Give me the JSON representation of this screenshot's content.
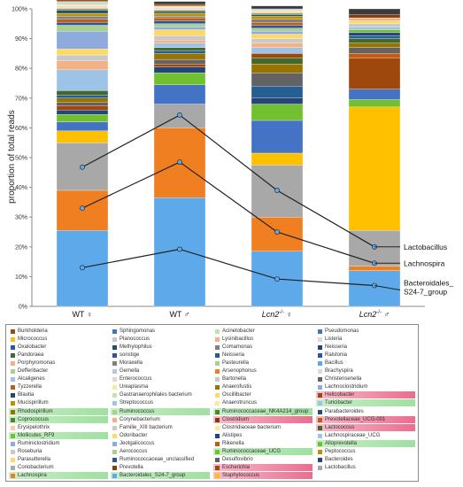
{
  "chart_data": {
    "type": "stacked-bar-with-lines",
    "ylabel": "proportion of total reads",
    "ylim": [
      0,
      100
    ],
    "yticks": [
      "0%",
      "10%",
      "20%",
      "30%",
      "40%",
      "50%",
      "60%",
      "70%",
      "80%",
      "90%",
      "100%"
    ],
    "categories": [
      {
        "prefix": "WT",
        "sup": "",
        "sym": "♀"
      },
      {
        "prefix": "WT",
        "sup": "",
        "sym": "♂"
      },
      {
        "prefix": "Lcn2",
        "sup": "-/-",
        "sym": "♀"
      },
      {
        "prefix": "Lcn2",
        "sup": "-/-",
        "sym": "♂"
      }
    ],
    "stacks": [
      [
        {
          "v": 25.5,
          "c": "#5da9e9"
        },
        {
          "v": 13.5,
          "c": "#f07f22"
        },
        {
          "v": 16,
          "c": "#a8a8a8"
        },
        {
          "v": 4,
          "c": "#ffc000"
        },
        {
          "v": 3,
          "c": "#4472c4"
        },
        {
          "v": 2.5,
          "c": "#70c030"
        },
        {
          "v": 1.5,
          "c": "#264478"
        },
        {
          "v": 1.5,
          "c": "#9e480e"
        },
        {
          "v": 1,
          "c": "#636363"
        },
        {
          "v": 1.5,
          "c": "#997300"
        },
        {
          "v": 1,
          "c": "#255e91"
        },
        {
          "v": 1.5,
          "c": "#43682b"
        },
        {
          "v": 7,
          "c": "#9dc3e6"
        },
        {
          "v": 3,
          "c": "#f4b183"
        },
        {
          "v": 2,
          "c": "#c9c9c9"
        },
        {
          "v": 2,
          "c": "#ffd966"
        },
        {
          "v": 6,
          "c": "#8faadc"
        },
        {
          "v": 2,
          "c": "#a9d18e"
        },
        {
          "v": 1,
          "c": "#2f5597"
        },
        {
          "v": 1,
          "c": "#c55a11"
        },
        {
          "v": 1,
          "c": "#7f7f7f"
        },
        {
          "v": 1,
          "c": "#bf9000"
        },
        {
          "v": 1,
          "c": "#1f4e79"
        },
        {
          "v": 0.5,
          "c": "#548235"
        },
        {
          "v": 0.5,
          "c": "#f8cbad"
        },
        {
          "v": 0.5,
          "c": "#dbdbdb"
        },
        {
          "v": 0.5,
          "c": "#ffe699"
        },
        {
          "v": 0.5,
          "c": "#b4c7e7"
        },
        {
          "v": 0.5,
          "c": "#c5e0b4"
        },
        {
          "v": 0.5,
          "c": "#843c0c"
        },
        {
          "v": 1,
          "c": "#3b3b3b"
        }
      ],
      [
        {
          "v": 36.5,
          "c": "#5da9e9"
        },
        {
          "v": 23.5,
          "c": "#f07f22"
        },
        {
          "v": 8,
          "c": "#a8a8a8"
        },
        {
          "v": 6.5,
          "c": "#4472c4"
        },
        {
          "v": 4,
          "c": "#70c030"
        },
        {
          "v": 2,
          "c": "#264478"
        },
        {
          "v": 1,
          "c": "#9e480e"
        },
        {
          "v": 1.5,
          "c": "#636363"
        },
        {
          "v": 2,
          "c": "#997300"
        },
        {
          "v": 1,
          "c": "#255e91"
        },
        {
          "v": 1,
          "c": "#43682b"
        },
        {
          "v": 1.5,
          "c": "#9dc3e6"
        },
        {
          "v": 1,
          "c": "#f4b183"
        },
        {
          "v": 1.5,
          "c": "#c9c9c9"
        },
        {
          "v": 2,
          "c": "#ffd966"
        },
        {
          "v": 1,
          "c": "#8faadc"
        },
        {
          "v": 1,
          "c": "#a9d18e"
        },
        {
          "v": 1,
          "c": "#2f5597"
        },
        {
          "v": 1,
          "c": "#c55a11"
        },
        {
          "v": 0.5,
          "c": "#7f7f7f"
        },
        {
          "v": 1,
          "c": "#bf9000"
        },
        {
          "v": 0.5,
          "c": "#1f4e79"
        },
        {
          "v": 0.5,
          "c": "#548235"
        },
        {
          "v": 0.5,
          "c": "#f8cbad"
        },
        {
          "v": 0.5,
          "c": "#dbdbdb"
        },
        {
          "v": 0.5,
          "c": "#ffe699"
        },
        {
          "v": 0.5,
          "c": "#843c0c"
        },
        {
          "v": 1,
          "c": "#3b3b3b"
        }
      ],
      [
        {
          "v": 18.5,
          "c": "#5da9e9"
        },
        {
          "v": 11.5,
          "c": "#f07f22"
        },
        {
          "v": 17.5,
          "c": "#a8a8a8"
        },
        {
          "v": 4,
          "c": "#ffc000"
        },
        {
          "v": 11,
          "c": "#4472c4"
        },
        {
          "v": 5.5,
          "c": "#70c030"
        },
        {
          "v": 2,
          "c": "#264478"
        },
        {
          "v": 4,
          "c": "#255e91"
        },
        {
          "v": 4.5,
          "c": "#636363"
        },
        {
          "v": 3,
          "c": "#997300"
        },
        {
          "v": 2,
          "c": "#43682b"
        },
        {
          "v": 1.5,
          "c": "#9e480e"
        },
        {
          "v": 2,
          "c": "#9dc3e6"
        },
        {
          "v": 1.5,
          "c": "#f4b183"
        },
        {
          "v": 1.5,
          "c": "#c9c9c9"
        },
        {
          "v": 1.5,
          "c": "#ffd966"
        },
        {
          "v": 1,
          "c": "#8faadc"
        },
        {
          "v": 1,
          "c": "#a9d18e"
        },
        {
          "v": 1,
          "c": "#2f5597"
        },
        {
          "v": 1,
          "c": "#c55a11"
        },
        {
          "v": 1,
          "c": "#7f7f7f"
        },
        {
          "v": 1,
          "c": "#bf9000"
        },
        {
          "v": 0.5,
          "c": "#1f4e79"
        },
        {
          "v": 0.5,
          "c": "#548235"
        },
        {
          "v": 0.5,
          "c": "#f8cbad"
        },
        {
          "v": 0.5,
          "c": "#ffe699"
        },
        {
          "v": 0.5,
          "c": "#b4c7e7"
        },
        {
          "v": 1,
          "c": "#3b3b3b"
        }
      ],
      [
        {
          "v": 12,
          "c": "#5da9e9"
        },
        {
          "v": 1.5,
          "c": "#f07f22"
        },
        {
          "v": 12,
          "c": "#a8a8a8"
        },
        {
          "v": 41.5,
          "c": "#ffc000"
        },
        {
          "v": 2.5,
          "c": "#70c030"
        },
        {
          "v": 3.5,
          "c": "#4472c4"
        },
        {
          "v": 10.5,
          "c": "#9e480e"
        },
        {
          "v": 1.5,
          "c": "#c55a11"
        },
        {
          "v": 2,
          "c": "#636363"
        },
        {
          "v": 1.5,
          "c": "#997300"
        },
        {
          "v": 1.5,
          "c": "#43682b"
        },
        {
          "v": 1,
          "c": "#255e91"
        },
        {
          "v": 1,
          "c": "#264478"
        },
        {
          "v": 1,
          "c": "#70c030"
        },
        {
          "v": 1,
          "c": "#9dc3e6"
        },
        {
          "v": 1,
          "c": "#c9c9c9"
        },
        {
          "v": 1,
          "c": "#ffd966"
        },
        {
          "v": 1,
          "c": "#f4b183"
        },
        {
          "v": 1,
          "c": "#843c0c"
        },
        {
          "v": 2,
          "c": "#3b3b3b"
        }
      ]
    ],
    "lines": [
      {
        "label": "Lactobacillus",
        "values": [
          46.8,
          64.3,
          39,
          20
        ]
      },
      {
        "label": "Lachnospira",
        "values": [
          33,
          48.5,
          25,
          14.5
        ]
      },
      {
        "label": "Bacteroidales_\nS24-7_group",
        "values": [
          13,
          19.2,
          9.2,
          7
        ]
      }
    ],
    "line_color": "#222222",
    "point_color": "#5da9e9",
    "legend": [
      [
        {
          "t": "Burkholderia",
          "c": "#9e480e"
        },
        {
          "t": "Micrococcus",
          "c": "#ffc000"
        },
        {
          "t": "Oxalobacter",
          "c": "#255e91"
        },
        {
          "t": "Pandoraea",
          "c": "#43682b"
        },
        {
          "t": "Porphyromonas",
          "c": "#f4b183"
        },
        {
          "t": "Defferibacter",
          "c": "#a9d18e"
        },
        {
          "t": "Alcaligenes",
          "c": "#9dc3e6"
        },
        {
          "t": "Tyzzerella",
          "c": "#c55a11"
        },
        {
          "t": "Blautia",
          "c": "#264478"
        },
        {
          "t": "Mucispirillum",
          "c": "#bf9000"
        },
        {
          "t": "Rhodospirillum",
          "c": "#997300",
          "hl": "green"
        },
        {
          "t": "Coprococcus",
          "c": "#548235",
          "hl": "green"
        },
        {
          "t": "Erysipelothrix",
          "c": "#f8cbad"
        },
        {
          "t": "Mollicutes_RF9",
          "c": "#70c030",
          "hl": "green"
        },
        {
          "t": "Ruminiclostridium",
          "c": "#8faadc"
        },
        {
          "t": "Roseburia",
          "c": "#c9c9c9"
        },
        {
          "t": "Parasutterella",
          "c": "#ffd966"
        },
        {
          "t": "Coriobacterium",
          "c": "#a8a8a8"
        },
        {
          "t": "Lachnospira",
          "c": "#f07f22",
          "hl": "green"
        }
      ],
      [
        {
          "t": "Sphingomonas",
          "c": "#4472c4"
        },
        {
          "t": "Planococcus",
          "c": "#c9c9c9"
        },
        {
          "t": "Methylophilus",
          "c": "#1f4e79"
        },
        {
          "t": "sonstige",
          "c": "#2f5597"
        },
        {
          "t": "Moraxella",
          "c": "#7f7f7f"
        },
        {
          "t": "Gemella",
          "c": "#b4c7e7"
        },
        {
          "t": "Enterococcus",
          "c": "#dbdbdb"
        },
        {
          "t": "Ureaplasma",
          "c": "#ffe699"
        },
        {
          "t": "Gastranaerophilales bacterium",
          "c": "#c5e0b4"
        },
        {
          "t": "Streptococcus",
          "c": "#9dc3e6"
        },
        {
          "t": "Ruminococcus",
          "c": "#a9d18e",
          "hl": "green"
        },
        {
          "t": "Corynebacterium",
          "c": "#f4b183"
        },
        {
          "t": "Familie_XIII bacterium",
          "c": "#c9c9c9"
        },
        {
          "t": "Odoribacter",
          "c": "#ffd966"
        },
        {
          "t": "Jeotgalicoccus",
          "c": "#8faadc"
        },
        {
          "t": "Aerococcus",
          "c": "#a9d18e"
        },
        {
          "t": "Ruminococcaceae_unclassified",
          "c": "#2f5597"
        },
        {
          "t": "Prevotella",
          "c": "#843c0c"
        },
        {
          "t": "Bacteroidales_S24-7_group",
          "c": "#5da9e9",
          "hl": "green"
        }
      ],
      [
        {
          "t": "Acinetobacter",
          "c": "#c5e0b4"
        },
        {
          "t": "Lysinibacillus",
          "c": "#f4b183"
        },
        {
          "t": "Comamonas",
          "c": "#7f7f7f"
        },
        {
          "t": "Neisseria",
          "c": "#255e91"
        },
        {
          "t": "Pasteurella",
          "c": "#a9d18e"
        },
        {
          "t": "Arsenophonus",
          "c": "#f07f22"
        },
        {
          "t": "Bartonella",
          "c": "#c9c9c9"
        },
        {
          "t": "Anaerofustis",
          "c": "#997300"
        },
        {
          "t": "Oscillibacter",
          "c": "#ffd966"
        },
        {
          "t": "Anaerotruncus",
          "c": "#ffe699"
        },
        {
          "t": "Ruminococcaceae_NK4A214_group",
          "c": "#548235",
          "hl": "green"
        },
        {
          "t": "Clostridium",
          "c": "#843c0c",
          "hl": "pink"
        },
        {
          "t": "Clostridiaceae bacterium",
          "c": "#ffe699"
        },
        {
          "t": "Alistipes",
          "c": "#264478"
        },
        {
          "t": "Rikenella",
          "c": "#c55a11"
        },
        {
          "t": "Ruminococcaceae_UCG",
          "c": "#70c030",
          "hl": "green"
        },
        {
          "t": "Desulfovibrio",
          "c": "#636363"
        },
        {
          "t": "Escherichia",
          "c": "#9e480e",
          "hl": "pink"
        },
        {
          "t": "Staphylococcus",
          "c": "#ffc000",
          "hl": "pink"
        }
      ],
      [
        {
          "t": "Pseudomonas",
          "c": "#4472c4"
        },
        {
          "t": "Listeria",
          "c": "#dbdbdb"
        },
        {
          "t": "Neisseria",
          "c": "#264478"
        },
        {
          "t": "Ralstonia",
          "c": "#2f5597"
        },
        {
          "t": "Bacillus",
          "c": "#5da9e9"
        },
        {
          "t": "Brachyspira",
          "c": "#dbdbdb"
        },
        {
          "t": "Christensenella",
          "c": "#636363"
        },
        {
          "t": "Lachnoclostridium",
          "c": "#8faadc"
        },
        {
          "t": "Helicobacter",
          "c": "#9e480e",
          "hl": "pink"
        },
        {
          "t": "Turicibacter",
          "c": "#9dc3e6",
          "hl": "green"
        },
        {
          "t": "Parabacteroides",
          "c": "#1f4e79"
        },
        {
          "t": "Prevotellaceae_UCG-001",
          "c": "#c55a11",
          "hl": "pink"
        },
        {
          "t": "Lactococcus",
          "c": "#43682b",
          "hl": "pink"
        },
        {
          "t": "Lachnospiraceae_UCG",
          "c": "#9dc3e6"
        },
        {
          "t": "Alloprevotella",
          "c": "#70c030",
          "hl": "green"
        },
        {
          "t": "Peptococcus",
          "c": "#bf9000"
        },
        {
          "t": "Bacteroides",
          "c": "#264478"
        },
        {
          "t": "Lactobacillus",
          "c": "#a8a8a8"
        }
      ]
    ]
  }
}
